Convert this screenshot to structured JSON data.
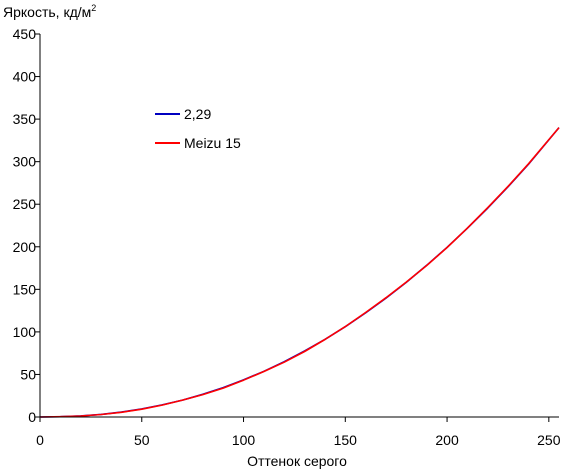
{
  "chart_data": {
    "type": "line",
    "title": "",
    "ylabel": "Яркость, кд/м",
    "ylabel_sup": "2",
    "xlabel": "Оттенок серого",
    "xlim": [
      0,
      255
    ],
    "ylim": [
      0,
      450
    ],
    "x_ticks": [
      "0",
      "50",
      "100",
      "150",
      "200",
      "250"
    ],
    "y_ticks": [
      "0",
      "50",
      "100",
      "150",
      "200",
      "250",
      "300",
      "350",
      "400",
      "450"
    ],
    "grid": false,
    "legend_position": "upper-left inside",
    "series": [
      {
        "name": "2,29",
        "color": "#0000c0",
        "x": [
          0,
          10,
          20,
          30,
          40,
          50,
          60,
          70,
          80,
          90,
          100,
          110,
          120,
          130,
          140,
          150,
          160,
          170,
          180,
          190,
          200,
          210,
          220,
          230,
          240,
          255
        ],
        "y": [
          0,
          0.3,
          1.3,
          3.1,
          5.8,
          9.5,
          14.2,
          19.9,
          26.7,
          34.6,
          43.6,
          53.7,
          65.0,
          77.5,
          91.2,
          106.1,
          122.3,
          139.7,
          158.3,
          178.2,
          199.4,
          221.8,
          245.6,
          270.6,
          297.0,
          340.0
        ]
      },
      {
        "name": "Meizu 15",
        "color": "#ff0000",
        "x": [
          0,
          10,
          20,
          30,
          40,
          50,
          60,
          70,
          80,
          90,
          100,
          110,
          120,
          130,
          140,
          150,
          160,
          170,
          180,
          190,
          200,
          210,
          220,
          230,
          240,
          255
        ],
        "y": [
          0,
          0.3,
          1.2,
          2.9,
          5.5,
          9.2,
          14.0,
          19.8,
          26.3,
          34.0,
          43.2,
          53.5,
          64.4,
          77.0,
          91.0,
          106.2,
          122.8,
          140.2,
          158.6,
          178.0,
          199.2,
          222.0,
          246.0,
          271.0,
          297.5,
          340.0
        ]
      }
    ]
  }
}
